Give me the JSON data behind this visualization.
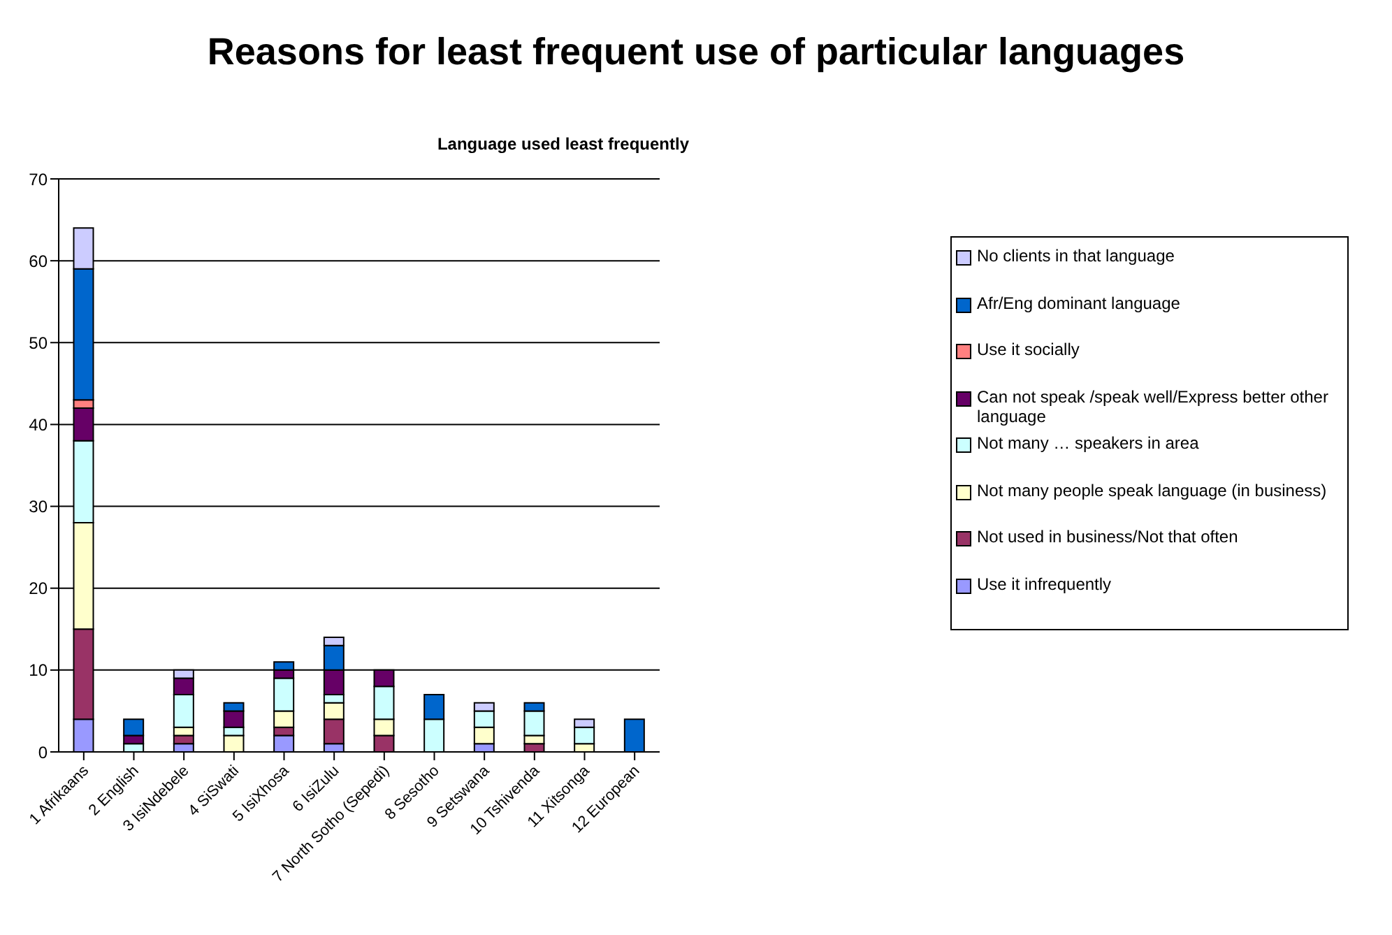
{
  "chart_data": {
    "type": "bar",
    "title": "Reasons for least frequent use of particular languages",
    "subtitle": "Language used least frequently",
    "categories": [
      "1 Afrikaans",
      "2 English",
      "3 IsiNdebele",
      "4 SiSwati",
      "5 IsiXhosa",
      "6 IsiZulu",
      "7 North Sotho (Sepedi)",
      "8 Sesotho",
      "9 Setswana",
      "10 Tshivenda",
      "11 Xitsonga",
      "12 European"
    ],
    "stacked": true,
    "series": [
      {
        "name": "Use it infrequently",
        "color": "#9999ff",
        "values": [
          4,
          0,
          1,
          0,
          2,
          1,
          0,
          0,
          1,
          0,
          0,
          0
        ]
      },
      {
        "name": "Not used in business/Not that often",
        "color": "#993366",
        "values": [
          11,
          0,
          1,
          0,
          1,
          3,
          2,
          0,
          0,
          1,
          0,
          0
        ]
      },
      {
        "name": "Not many people speak language (in business)",
        "color": "#ffffcc",
        "values": [
          13,
          0,
          1,
          2,
          2,
          2,
          2,
          0,
          2,
          1,
          1,
          0
        ]
      },
      {
        "name": "Not many … speakers in area",
        "color": "#ccffff",
        "values": [
          10,
          1,
          4,
          1,
          4,
          1,
          4,
          4,
          2,
          3,
          2,
          0
        ]
      },
      {
        "name": "Can not speak /speak well/Express better  other language",
        "color": "#660066",
        "values": [
          4,
          1,
          2,
          2,
          1,
          3,
          2,
          0,
          0,
          0,
          0,
          0
        ]
      },
      {
        "name": "Use it socially",
        "color": "#ff8080",
        "values": [
          1,
          0,
          0,
          0,
          0,
          0,
          0,
          0,
          0,
          0,
          0,
          0
        ]
      },
      {
        "name": "Afr/Eng dominant language",
        "color": "#0066cc",
        "values": [
          16,
          2,
          0,
          1,
          1,
          3,
          0,
          3,
          0,
          1,
          0,
          4
        ]
      },
      {
        "name": "No clients  in that language",
        "color": "#ccccff",
        "values": [
          5,
          0,
          1,
          0,
          0,
          1,
          0,
          0,
          1,
          0,
          1,
          0
        ]
      }
    ],
    "ylim": [
      0,
      70
    ],
    "yticks": [
      0,
      10,
      20,
      30,
      40,
      50,
      60,
      70
    ],
    "grid": "y",
    "legend": "top right"
  }
}
